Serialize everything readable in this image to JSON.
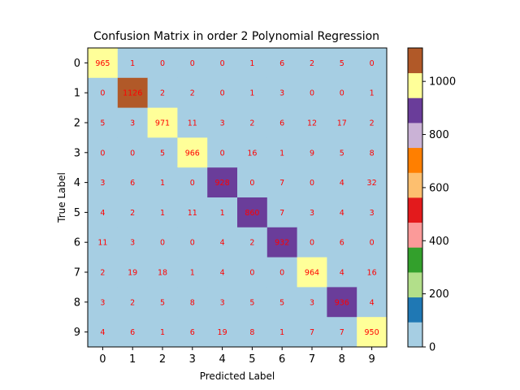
{
  "chart_data": {
    "type": "heatmap",
    "title": "Confusion Matrix in order 2 Polynomial Regression",
    "xlabel": "Predicted Label",
    "ylabel": "True Label",
    "x_categories": [
      "0",
      "1",
      "2",
      "3",
      "4",
      "5",
      "6",
      "7",
      "8",
      "9"
    ],
    "y_categories": [
      "0",
      "1",
      "2",
      "3",
      "4",
      "5",
      "6",
      "7",
      "8",
      "9"
    ],
    "values": [
      [
        965,
        1,
        0,
        0,
        0,
        1,
        6,
        2,
        5,
        0
      ],
      [
        0,
        1126,
        2,
        2,
        0,
        1,
        3,
        0,
        0,
        1
      ],
      [
        5,
        3,
        971,
        11,
        3,
        2,
        6,
        12,
        17,
        2
      ],
      [
        0,
        0,
        5,
        966,
        0,
        16,
        1,
        9,
        5,
        8
      ],
      [
        3,
        6,
        1,
        0,
        928,
        0,
        7,
        0,
        4,
        32
      ],
      [
        4,
        2,
        1,
        11,
        1,
        860,
        7,
        3,
        4,
        3
      ],
      [
        11,
        3,
        0,
        0,
        4,
        2,
        932,
        0,
        6,
        0
      ],
      [
        2,
        19,
        18,
        1,
        4,
        0,
        0,
        964,
        4,
        16
      ],
      [
        3,
        2,
        5,
        8,
        3,
        5,
        5,
        3,
        936,
        4
      ],
      [
        4,
        6,
        1,
        6,
        19,
        8,
        1,
        7,
        7,
        950
      ]
    ],
    "value_range": [
      0,
      1126
    ],
    "colormap": "Paired",
    "colormap_colors": [
      "#a6cee3",
      "#1f78b4",
      "#b2df8a",
      "#33a02c",
      "#fb9a99",
      "#e31a1c",
      "#fdbf6f",
      "#ff7f00",
      "#cab2d6",
      "#6a3d9a",
      "#ffff99",
      "#b15928"
    ],
    "colorbar_ticks": [
      0,
      200,
      400,
      600,
      800,
      1000
    ],
    "cell_label_color": "#ff0000",
    "grid": false,
    "legend": "colorbar-right"
  }
}
